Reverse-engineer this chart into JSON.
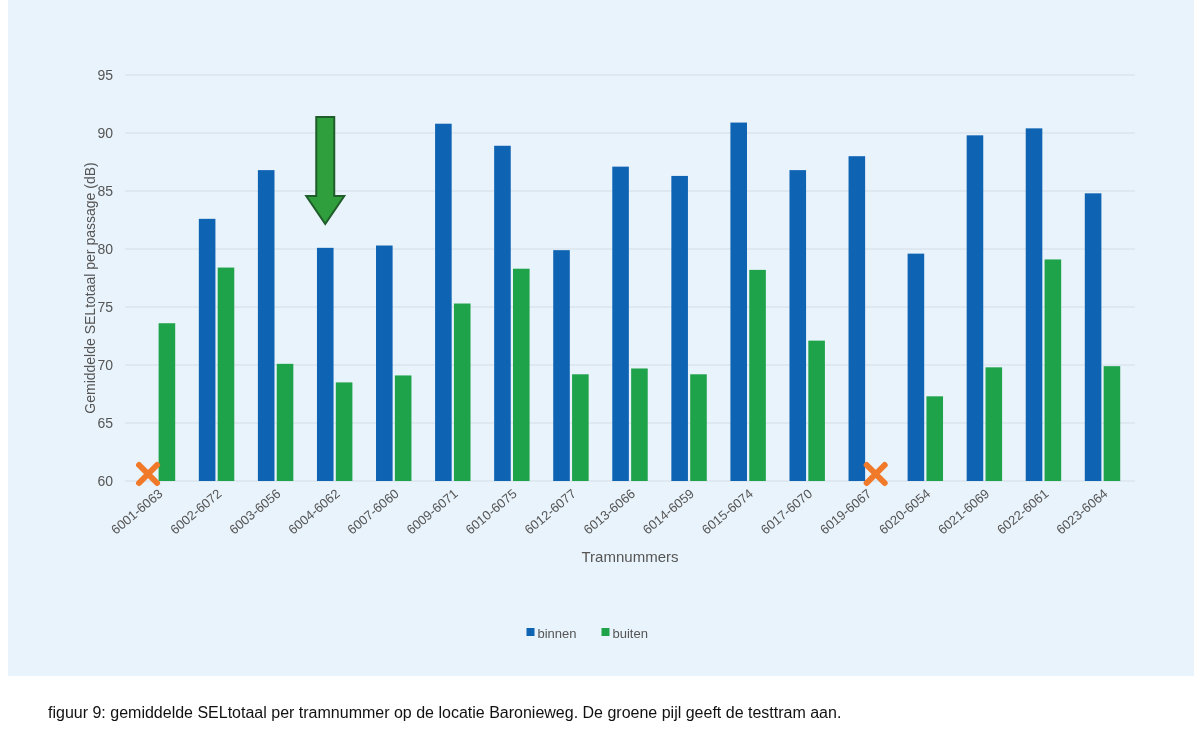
{
  "chart_data": {
    "type": "bar",
    "categories": [
      "6001-6063",
      "6002-6072",
      "6003-6056",
      "6004-6062",
      "6007-6060",
      "6009-6071",
      "6010-6075",
      "6012-6077",
      "6013-6066",
      "6014-6059",
      "6015-6074",
      "6017-6070",
      "6019-6067",
      "6020-6054",
      "6021-6069",
      "6022-6061",
      "6023-6064"
    ],
    "series": [
      {
        "name": "binnen",
        "color": "#0f63b3",
        "values": [
          null,
          82.6,
          86.8,
          80.1,
          80.3,
          90.8,
          88.9,
          79.9,
          87.1,
          86.3,
          90.9,
          86.8,
          88.0,
          79.6,
          89.8,
          90.4,
          84.8
        ]
      },
      {
        "name": "buiten",
        "color": "#1fa34a",
        "values": [
          73.6,
          78.4,
          70.1,
          68.5,
          69.1,
          75.3,
          78.3,
          69.2,
          69.7,
          69.2,
          78.2,
          72.1,
          null,
          67.3,
          69.8,
          79.1,
          69.9
        ]
      }
    ],
    "xlabel": "Tramnummers",
    "ylabel": "Gemiddelde SELtotaal per passage (dB)",
    "ylim": [
      60,
      95
    ],
    "yticks": [
      60,
      65,
      70,
      75,
      80,
      85,
      90,
      95
    ],
    "grid": "y",
    "legend": "bottom",
    "annotations": [
      "figuur 9: gemiddelde SELtotaal per tramnummer op de locatie Baronieweg. De groene pijl geeft de testtram aan."
    ]
  }
}
